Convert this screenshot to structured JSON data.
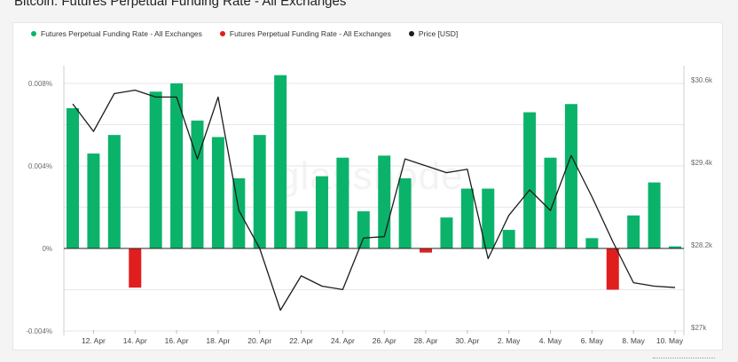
{
  "page": {
    "title": "Bitcoin: Futures Perpetual Funding Rate - All Exchanges",
    "watermark": "glassnode"
  },
  "colors": {
    "positive": "#0bb36a",
    "negative": "#e11e1e",
    "price": "#1c1c1c",
    "grid": "#e6e6e6",
    "axis_text": "#6b6b6b"
  },
  "chart_data": {
    "type": "bar",
    "title": "Bitcoin: Futures Perpetual Funding Rate - All Exchanges",
    "legend_position": "top-left",
    "grid": true,
    "legend": [
      {
        "label": "Futures Perpetual Funding Rate - All Exchanges",
        "color": "#0bb36a"
      },
      {
        "label": "Futures Perpetual Funding Rate - All Exchanges",
        "color": "#e11e1e"
      },
      {
        "label": "Price [USD]",
        "color": "#1c1c1c"
      }
    ],
    "categories": [
      "11 Apr",
      "12 Apr",
      "13 Apr",
      "14 Apr",
      "15 Apr",
      "16 Apr",
      "17 Apr",
      "18 Apr",
      "19 Apr",
      "20 Apr",
      "21 Apr",
      "22 Apr",
      "23 Apr",
      "24 Apr",
      "25 Apr",
      "26 Apr",
      "27 Apr",
      "28 Apr",
      "29 Apr",
      "30 Apr",
      "1 May",
      "2 May",
      "3 May",
      "4 May",
      "5 May",
      "6 May",
      "7 May",
      "8 May",
      "9 May",
      "10 May"
    ],
    "x_tick_labels": [
      "12. Apr",
      "14. Apr",
      "16. Apr",
      "18. Apr",
      "20. Apr",
      "22. Apr",
      "24. Apr",
      "26. Apr",
      "28. Apr",
      "30. Apr",
      "2. May",
      "4. May",
      "6. May",
      "8. May",
      "10. May"
    ],
    "y_left": {
      "ticks": [
        "-0.004%",
        "0%",
        "0.004%",
        "0.008%"
      ],
      "tick_values": [
        -0.004,
        0,
        0.004,
        0.008
      ],
      "range": [
        -0.004,
        0.0083
      ],
      "unit": "%"
    },
    "y_right": {
      "ticks": [
        "$27k",
        "$28.2k",
        "$29.4k",
        "$30.6k"
      ],
      "tick_values": [
        27.0,
        28.2,
        29.4,
        30.6
      ],
      "range": [
        27.0,
        30.6
      ],
      "unit": "k USD"
    },
    "series": [
      {
        "name": "Futures Perpetual Funding Rate - All Exchanges",
        "axis": "left",
        "values": [
          0.0068,
          0.0046,
          0.0055,
          -0.0019,
          0.0076,
          0.008,
          0.0062,
          0.0054,
          0.0034,
          0.0055,
          0.0084,
          0.0018,
          0.0035,
          0.0044,
          0.0018,
          0.0045,
          0.0034,
          -0.0002,
          0.0015,
          0.0029,
          0.0029,
          0.0009,
          0.0066,
          0.0044,
          0.007,
          0.0005,
          -0.002,
          0.0016,
          0.0032,
          0.0001
        ]
      },
      {
        "name": "Price [USD]",
        "axis": "right",
        "type": "line",
        "values": [
          30.25,
          29.85,
          30.4,
          30.45,
          30.35,
          30.35,
          29.45,
          30.35,
          28.7,
          28.15,
          27.25,
          27.75,
          27.6,
          27.55,
          28.3,
          28.32,
          29.45,
          29.35,
          29.25,
          29.3,
          28.0,
          28.63,
          29.0,
          28.7,
          29.5,
          28.9,
          28.25,
          27.65,
          27.6,
          27.58
        ]
      }
    ]
  }
}
